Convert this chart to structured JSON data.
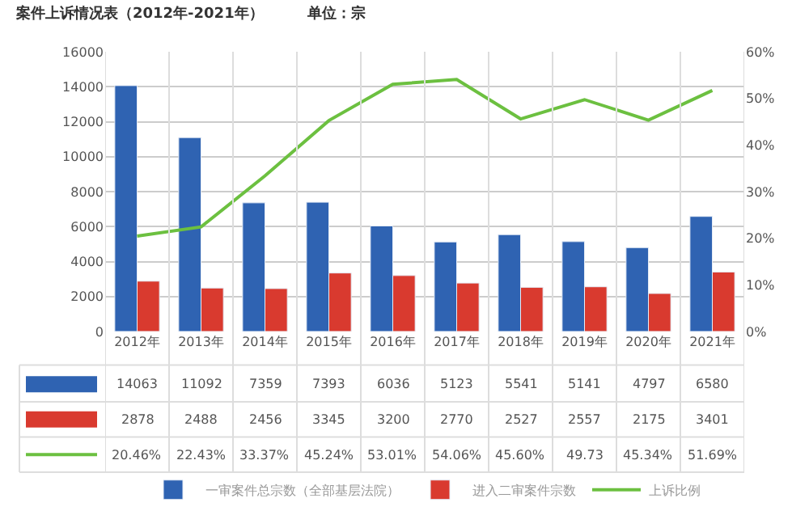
{
  "chart_data": {
    "type": "bar",
    "title": "案件上诉情况表（2012年-2021年）　　　单位：宗",
    "categories": [
      "2012年",
      "2013年",
      "2014年",
      "2015年",
      "2016年",
      "2017年",
      "2018年",
      "2019年",
      "2020年",
      "2021年"
    ],
    "series": [
      {
        "name": "一审案件总宗数（全部基层法院）",
        "color": "#2f63b2",
        "values": [
          14063,
          11092,
          7359,
          7393,
          6036,
          5123,
          5541,
          5141,
          4797,
          6580
        ],
        "value_labels": [
          "14063",
          "11092",
          "7359",
          "7393",
          "6036",
          "5123",
          "5541",
          "5141",
          "4797",
          "6580"
        ]
      },
      {
        "name": "进入二审案件宗数",
        "color": "#d93a2f",
        "values": [
          2878,
          2488,
          2456,
          3345,
          3200,
          2770,
          2527,
          2557,
          2175,
          3401
        ],
        "value_labels": [
          "2878",
          "2488",
          "2456",
          "3345",
          "3200",
          "2770",
          "2527",
          "2557",
          "2175",
          "3401"
        ]
      },
      {
        "name": "上诉比例",
        "type": "line",
        "axis": "y2",
        "color": "#6cc040",
        "values": [
          20.46,
          22.43,
          33.37,
          45.24,
          53.01,
          54.06,
          45.6,
          49.73,
          45.34,
          51.69
        ],
        "value_labels": [
          "20.46%",
          "22.43%",
          "33.37%",
          "45.24%",
          "53.01%",
          "54.06%",
          "45.60%",
          "49.73",
          "45.34%",
          "51.69%"
        ]
      }
    ],
    "ylim": [
      0,
      16000
    ],
    "yticks": [
      0,
      2000,
      4000,
      6000,
      8000,
      10000,
      12000,
      14000,
      16000
    ],
    "y2lim": [
      0,
      60
    ],
    "y2ticks": [
      {
        "value": 0,
        "label": "0%"
      },
      {
        "value": 10,
        "label": "10%"
      },
      {
        "value": 20,
        "label": "20%"
      },
      {
        "value": 30,
        "label": "30%"
      },
      {
        "value": 40,
        "label": "40%"
      },
      {
        "value": 50,
        "label": "50%"
      },
      {
        "value": 60,
        "label": "60%"
      }
    ],
    "grid": "y",
    "legend": "bottom",
    "marker": "none",
    "line_style": "solid"
  }
}
